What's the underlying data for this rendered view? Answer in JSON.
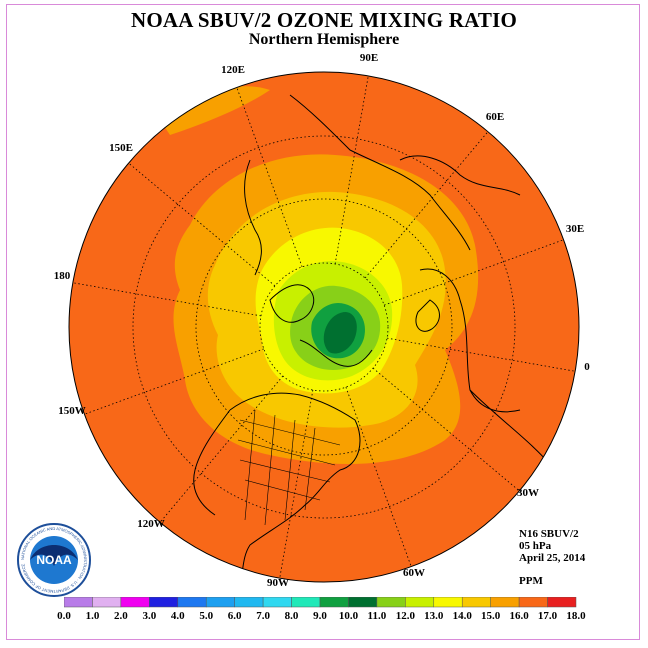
{
  "header": {
    "title": "NOAA SBUV/2 OZONE MIXING RATIO",
    "subtitle": "Northern Hemisphere"
  },
  "map": {
    "projection": "north polar stereographic",
    "longitude_labels": [
      "90E",
      "60E",
      "30E",
      "0",
      "30W",
      "60W",
      "90W",
      "120W",
      "150W",
      "180",
      "150E",
      "120E"
    ]
  },
  "info": {
    "instrument": "N16 SBUV/2",
    "level": "05 hPa",
    "date": "April 25, 2014",
    "units": "PPM"
  },
  "legend": {
    "ticks": [
      "0.0",
      "1.0",
      "2.0",
      "3.0",
      "4.0",
      "5.0",
      "6.0",
      "7.0",
      "8.0",
      "9.0",
      "10.0",
      "11.0",
      "12.0",
      "13.0",
      "14.0",
      "15.0",
      "16.0",
      "17.0",
      "18.0"
    ],
    "colors": [
      "#b87ce8",
      "#e0b0f0",
      "#f000f0",
      "#2020e0",
      "#1e78f0",
      "#1ea0f0",
      "#20b8f0",
      "#30d8f0",
      "#20e8b8",
      "#10a040",
      "#007030",
      "#88d018",
      "#c8f000",
      "#f8f800",
      "#f8c800",
      "#f8a000",
      "#f86818",
      "#e82020",
      "#8b5a3a"
    ]
  },
  "logo": {
    "text": "NOAA",
    "ring_text": "NATIONAL OCEANIC AND ATMOSPHERIC ADMINISTRATION · U.S. DEPARTMENT OF COMMERCE"
  }
}
